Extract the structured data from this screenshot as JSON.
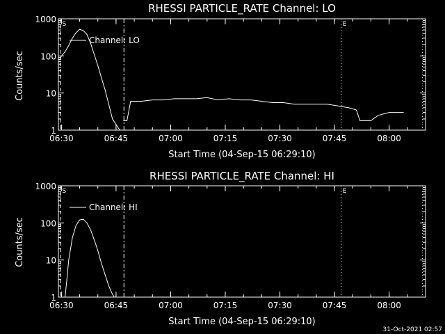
{
  "footer_timestamp": "31-Oct-2021 02:57",
  "chart_data": [
    {
      "type": "line",
      "title": "RHESSI PARTICLE_RATE Channel: LO",
      "xlabel": "Start Time (04-Sep-15 06:29:10)",
      "ylabel": "Counts/sec",
      "yscale": "log",
      "ylim": [
        1,
        1000
      ],
      "xlim": [
        "06:29:10",
        "08:10:00"
      ],
      "x_ticks": [
        "06:30",
        "06:45",
        "07:00",
        "07:15",
        "07:30",
        "07:45",
        "08:00"
      ],
      "y_ticks": [
        "1",
        "10",
        "100",
        "1000"
      ],
      "legend": "Channel: LO",
      "markers": [
        {
          "label": "S",
          "time": "06:29:50",
          "style": "dashed"
        },
        {
          "label": "",
          "time": "06:47:10",
          "style": "dashdot"
        },
        {
          "label": "E",
          "time": "07:46:50",
          "style": "dotted"
        },
        {
          "label": "",
          "time": "08:09:10",
          "style": "dotted"
        }
      ],
      "series": [
        {
          "name": "Channel: LO",
          "segments": [
            [
              [
                "06:29:40",
                90
              ],
              [
                "06:31:00",
                130
              ],
              [
                "06:32:00",
                190
              ],
              [
                "06:33:00",
                300
              ],
              [
                "06:34:00",
                420
              ],
              [
                "06:35:00",
                520
              ],
              [
                "06:36:00",
                480
              ],
              [
                "06:37:00",
                380
              ],
              [
                "06:38:00",
                220
              ],
              [
                "06:39:00",
                110
              ],
              [
                "06:40:00",
                55
              ],
              [
                "06:41:00",
                25
              ],
              [
                "06:42:00",
                12
              ],
              [
                "06:43:00",
                5
              ],
              [
                "06:44:00",
                2
              ],
              [
                "06:45:30",
                1.2
              ],
              [
                "06:46:00",
                1
              ]
            ],
            [
              [
                "06:47:00",
                1.8
              ],
              [
                "06:48:00",
                1.8
              ],
              [
                "06:49:00",
                6
              ],
              [
                "06:52:00",
                6
              ],
              [
                "06:55:00",
                6.5
              ],
              [
                "06:58:00",
                6.5
              ],
              [
                "07:01:00",
                7
              ],
              [
                "07:04:00",
                7
              ],
              [
                "07:07:00",
                7
              ],
              [
                "07:10:00",
                7.5
              ],
              [
                "07:13:00",
                6.5
              ],
              [
                "07:16:00",
                7
              ],
              [
                "07:19:00",
                6.5
              ],
              [
                "07:22:00",
                6.5
              ],
              [
                "07:25:00",
                6
              ],
              [
                "07:28:00",
                5.5
              ],
              [
                "07:31:00",
                5.5
              ],
              [
                "07:34:00",
                5
              ],
              [
                "07:37:00",
                5
              ],
              [
                "07:40:00",
                5
              ],
              [
                "07:43:00",
                5
              ],
              [
                "07:46:00",
                4.5
              ],
              [
                "07:49:00",
                4
              ],
              [
                "07:51:00",
                3.5
              ],
              [
                "07:52:00",
                1.8
              ],
              [
                "07:55:00",
                1.8
              ],
              [
                "07:57:00",
                2.5
              ],
              [
                "08:00:00",
                3
              ],
              [
                "08:02:00",
                3
              ],
              [
                "08:04:00",
                3
              ]
            ]
          ]
        }
      ]
    },
    {
      "type": "line",
      "title": "RHESSI PARTICLE_RATE Channel: HI",
      "xlabel": "Start Time (04-Sep-15 06:29:10)",
      "ylabel": "Counts/sec",
      "yscale": "log",
      "ylim": [
        1,
        1000
      ],
      "xlim": [
        "06:29:10",
        "08:10:00"
      ],
      "x_ticks": [
        "06:30",
        "06:45",
        "07:00",
        "07:15",
        "07:30",
        "07:45",
        "08:00"
      ],
      "y_ticks": [
        "1",
        "10",
        "100",
        "1000"
      ],
      "legend": "Channel: HI",
      "markers": [
        {
          "label": "S",
          "time": "06:29:50",
          "style": "dashed"
        },
        {
          "label": "",
          "time": "06:47:10",
          "style": "dashdot"
        },
        {
          "label": "E",
          "time": "07:46:50",
          "style": "dotted"
        },
        {
          "label": "",
          "time": "08:09:10",
          "style": "dotted"
        }
      ],
      "series": [
        {
          "name": "Channel: HI",
          "segments": [
            [
              [
                "06:31:00",
                1
              ],
              [
                "06:31:30",
                3
              ],
              [
                "06:32:00",
                10
              ],
              [
                "06:33:00",
                40
              ],
              [
                "06:34:00",
                85
              ],
              [
                "06:35:00",
                120
              ],
              [
                "06:36:00",
                125
              ],
              [
                "06:37:00",
                100
              ],
              [
                "06:38:00",
                65
              ],
              [
                "06:39:00",
                35
              ],
              [
                "06:40:00",
                18
              ],
              [
                "06:41:00",
                8
              ],
              [
                "06:42:00",
                4
              ],
              [
                "06:43:00",
                2
              ],
              [
                "06:44:00",
                1.2
              ],
              [
                "06:44:30",
                1
              ]
            ]
          ]
        }
      ]
    }
  ]
}
